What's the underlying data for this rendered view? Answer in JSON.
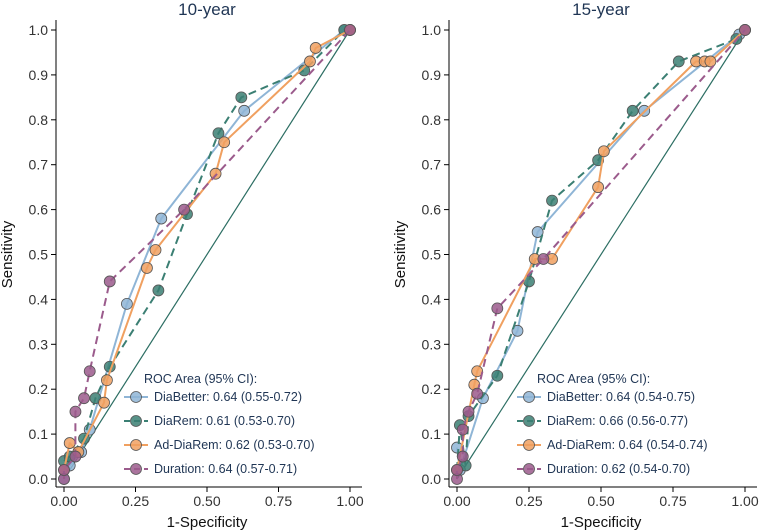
{
  "chart_data": [
    {
      "type": "line",
      "title": "10-year",
      "xlabel": "1-Specificity",
      "ylabel": "Sensitivity",
      "xlim": [
        0,
        1
      ],
      "ylim": [
        0,
        1
      ],
      "x_ticks": [
        "0.00",
        "0.25",
        "0.50",
        "0.75",
        "1.00"
      ],
      "y_ticks": [
        "0.0",
        "0.1",
        "0.2",
        "0.3",
        "0.4",
        "0.5",
        "0.6",
        "0.7",
        "0.8",
        "0.9",
        "1.0"
      ],
      "legend_title": "ROC Area (95% CI):",
      "legend_position": "bottom-right",
      "reference_line": true,
      "series": [
        {
          "name": "DiaBetter: 0.64 (0.55-0.72)",
          "color": "#8fb5d6",
          "dash": "solid",
          "x": [
            0,
            0.02,
            0.06,
            0.09,
            0.22,
            0.34,
            0.63,
            0.98,
            1.0
          ],
          "y": [
            0,
            0.03,
            0.06,
            0.11,
            0.39,
            0.58,
            0.82,
            1.0,
            1.0
          ]
        },
        {
          "name": "DiaRem: 0.61 (0.53-0.70)",
          "color": "#3b7f73",
          "dash": "dash",
          "x": [
            0,
            0.02,
            0.07,
            0.11,
            0.16,
            0.33,
            0.43,
            0.54,
            0.62,
            0.84,
            0.98,
            1.0
          ],
          "y": [
            0.04,
            0.05,
            0.09,
            0.18,
            0.25,
            0.42,
            0.59,
            0.77,
            0.85,
            0.91,
            1.0,
            1.0
          ]
        },
        {
          "name": "Ad-DiaRem: 0.62 (0.53-0.70)",
          "color": "#f0a060",
          "dash": "solid",
          "x": [
            0,
            0.02,
            0.05,
            0.14,
            0.15,
            0.29,
            0.32,
            0.53,
            0.56,
            0.86,
            0.88,
            1.0
          ],
          "y": [
            0.02,
            0.08,
            0.06,
            0.17,
            0.22,
            0.47,
            0.51,
            0.68,
            0.75,
            0.93,
            0.96,
            1.0
          ]
        },
        {
          "name": "Duration: 0.64 (0.57-0.71)",
          "color": "#9b5b8c",
          "dash": "dash",
          "x": [
            0,
            0,
            0.04,
            0.04,
            0.07,
            0.09,
            0.16,
            0.42,
            1.0
          ],
          "y": [
            0,
            0.02,
            0.05,
            0.15,
            0.18,
            0.24,
            0.44,
            0.6,
            1.0
          ]
        }
      ]
    },
    {
      "type": "line",
      "title": "15-year",
      "xlabel": "1-Specificity",
      "ylabel": "Sensitivity",
      "xlim": [
        0,
        1
      ],
      "ylim": [
        0,
        1
      ],
      "x_ticks": [
        "0.00",
        "0.25",
        "0.50",
        "0.75",
        "1.00"
      ],
      "y_ticks": [
        "0.0",
        "0.1",
        "0.2",
        "0.3",
        "0.4",
        "0.5",
        "0.6",
        "0.7",
        "0.8",
        "0.9",
        "1.0"
      ],
      "legend_title": "ROC Area (95% CI):",
      "legend_position": "bottom-right",
      "reference_line": true,
      "series": [
        {
          "name": "DiaBetter: 0.64 (0.54-0.75)",
          "color": "#8fb5d6",
          "dash": "solid",
          "x": [
            0,
            0.01,
            0.09,
            0.21,
            0.28,
            0.65,
            0.98,
            1.0
          ],
          "y": [
            0.07,
            0.02,
            0.18,
            0.33,
            0.55,
            0.82,
            0.99,
            1.0
          ]
        },
        {
          "name": "DiaRem: 0.66 (0.56-0.77)",
          "color": "#3b7f73",
          "dash": "dash",
          "x": [
            0,
            0.01,
            0.03,
            0.04,
            0.14,
            0.25,
            0.33,
            0.49,
            0.61,
            0.77,
            0.97,
            1.0
          ],
          "y": [
            0.02,
            0.12,
            0.03,
            0.14,
            0.23,
            0.44,
            0.62,
            0.71,
            0.82,
            0.93,
            0.98,
            1.0
          ]
        },
        {
          "name": "Ad-DiaRem: 0.64 (0.54-0.74)",
          "color": "#f0a060",
          "dash": "solid",
          "x": [
            0,
            0.06,
            0.07,
            0.27,
            0.33,
            0.49,
            0.51,
            0.83,
            0.86,
            0.88,
            1.0
          ],
          "y": [
            0.02,
            0.21,
            0.24,
            0.49,
            0.49,
            0.65,
            0.73,
            0.93,
            0.93,
            0.93,
            1.0
          ]
        },
        {
          "name": "Duration: 0.62 (0.54-0.70)",
          "color": "#9b5b8c",
          "dash": "dash",
          "x": [
            0,
            0,
            0.02,
            0.02,
            0.04,
            0.07,
            0.14,
            0.3,
            1.0
          ],
          "y": [
            0,
            0.02,
            0.05,
            0.11,
            0.15,
            0.19,
            0.38,
            0.49,
            1.0
          ]
        }
      ]
    }
  ]
}
